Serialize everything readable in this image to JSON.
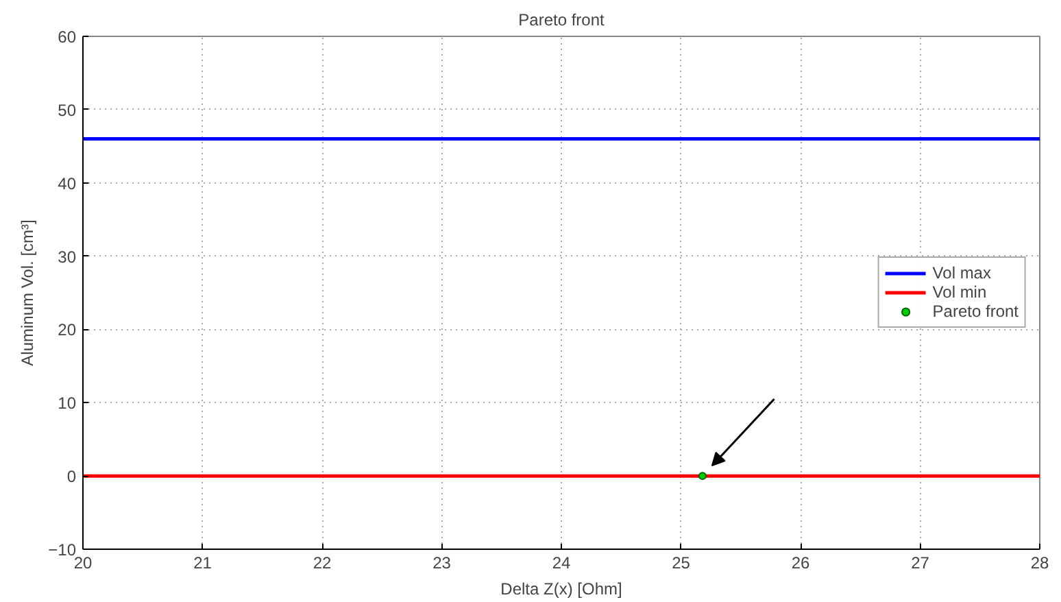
{
  "chart_data": {
    "type": "line",
    "title": "Pareto front",
    "xlabel": "Delta Z(x) [Ohm]",
    "ylabel": "Aluminum Vol. [cm³]",
    "series": [
      {
        "name": "Vol max",
        "color": "#0000ff",
        "x": [
          20,
          28
        ],
        "values": [
          46,
          46
        ]
      },
      {
        "name": "Vol min",
        "color": "#ff0000",
        "x": [
          20,
          28
        ],
        "values": [
          0,
          0
        ]
      },
      {
        "name": "Pareto front",
        "type": "scatter",
        "color": "#00cc00",
        "x": [
          25.18
        ],
        "values": [
          0
        ]
      }
    ],
    "xlim": [
      20,
      28
    ],
    "ylim": [
      -10,
      60
    ],
    "xticks": [
      20,
      21,
      22,
      23,
      24,
      25,
      26,
      27,
      28
    ],
    "yticks": [
      -10,
      0,
      10,
      20,
      30,
      40,
      50,
      60
    ],
    "grid": true,
    "legend": "right",
    "line_style": "solid"
  }
}
